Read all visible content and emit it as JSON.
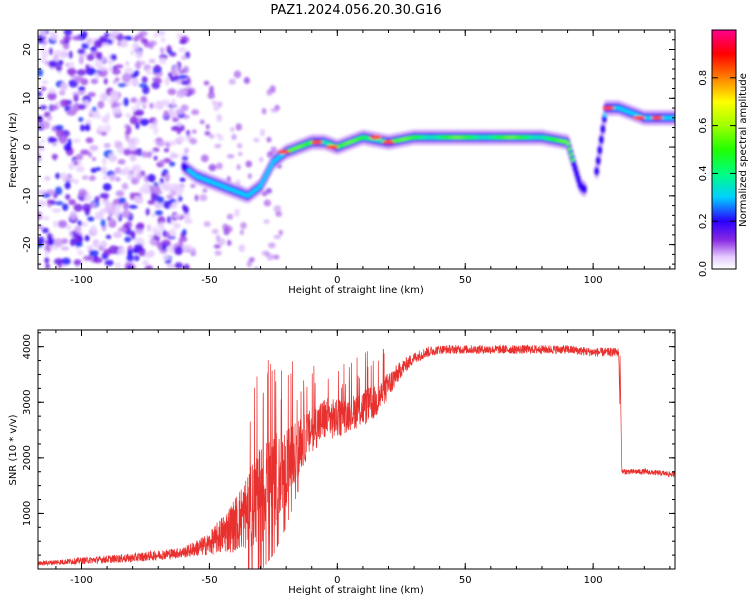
{
  "figure": {
    "title": "PAZ1.2024.056.20.30.G16"
  },
  "chart_data": [
    {
      "type": "heatmap",
      "title": "PAZ1.2024.056.20.30.G16",
      "xlabel": "Height of straight line (km)",
      "ylabel": "Frequency (Hz)",
      "xlim": [
        -117,
        132
      ],
      "ylim": [
        -25,
        24
      ],
      "xticks": [
        -100,
        -50,
        0,
        50,
        100
      ],
      "yticks": [
        -20,
        -10,
        0,
        10,
        20
      ],
      "colorbar": {
        "label": "Normalized spectral amplitude",
        "range": [
          0,
          1
        ],
        "ticks": [
          0.0,
          0.2,
          0.4,
          0.6,
          0.8
        ],
        "colormap": "gist_ncar-like"
      },
      "ridge": {
        "description_points_x": [
          -60,
          -55,
          -50,
          -45,
          -40,
          -35,
          -30,
          -25,
          -20,
          -15,
          -10,
          -5,
          0,
          10,
          20,
          30,
          40,
          50,
          60,
          70,
          80,
          90,
          95,
          100,
          105,
          110,
          115,
          120,
          132
        ],
        "description_points_y": [
          -4,
          -6,
          -7,
          -8,
          -9,
          -10,
          -8,
          -3,
          -1,
          0,
          1,
          1,
          0,
          2,
          1,
          2,
          2,
          2,
          2,
          2,
          2,
          1,
          -8,
          -10,
          8,
          8,
          7,
          6,
          6
        ]
      }
    },
    {
      "type": "line",
      "xlabel": "Height of straight line (km)",
      "ylabel": "SNR (10 * v/v)",
      "xlim": [
        -117,
        132
      ],
      "ylim": [
        0,
        4300
      ],
      "xticks": [
        -100,
        -50,
        0,
        50,
        100
      ],
      "yticks": [
        1000,
        2000,
        3000,
        4000
      ],
      "series_color": "#e8302e",
      "envelope_x": [
        -117,
        -100,
        -80,
        -60,
        -50,
        -40,
        -30,
        -25,
        -20,
        -15,
        -10,
        -5,
        0,
        5,
        10,
        15,
        20,
        25,
        30,
        35,
        40,
        50,
        60,
        70,
        80,
        90,
        100,
        110,
        111,
        120,
        132
      ],
      "envelope_y": [
        100,
        150,
        200,
        300,
        450,
        800,
        1300,
        1600,
        1800,
        2200,
        2500,
        2700,
        2700,
        2800,
        2900,
        3000,
        3300,
        3600,
        3800,
        3900,
        3950,
        3950,
        3950,
        3950,
        3950,
        3950,
        3900,
        3900,
        1750,
        1750,
        1700
      ],
      "noise_amplitude_y": [
        40,
        60,
        80,
        100,
        200,
        500,
        900,
        900,
        700,
        500,
        400,
        400,
        350,
        300,
        350,
        300,
        250,
        150,
        100,
        100,
        80,
        80,
        80,
        80,
        80,
        80,
        80,
        80,
        50,
        50,
        50
      ]
    }
  ]
}
